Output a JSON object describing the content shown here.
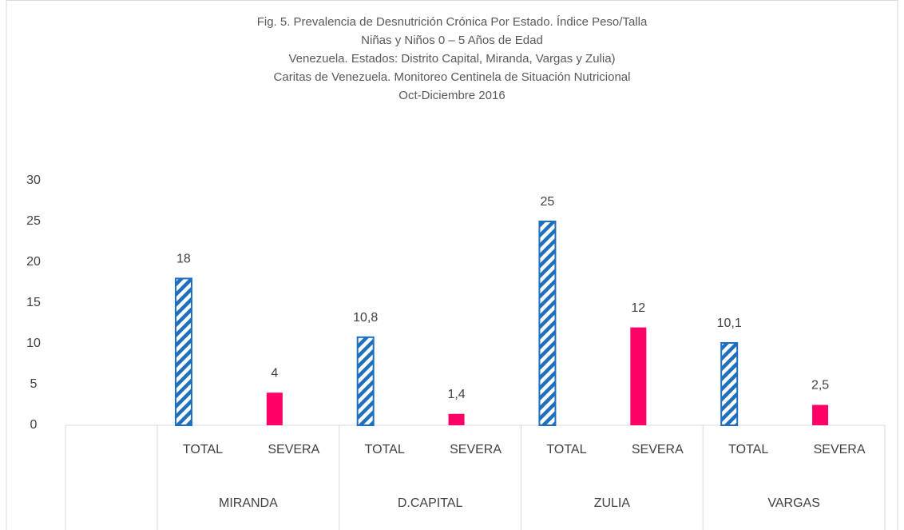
{
  "chart_data": {
    "type": "bar",
    "title": [
      "Fig. 5. Prevalencia de Desnutrición Crónica Por Estado. Índice Peso/Talla",
      "Niñas y Niños 0 – 5 Años de Edad",
      "Venezuela. Estados: Distrito Capital, Miranda, Vargas y Zulia)",
      "Caritas de Venezuela. Monitoreo Centinela de Situación Nutricional",
      "Oct-Diciembre 2016"
    ],
    "categories": [
      "TOTAL",
      "SEVERA",
      "TOTAL",
      "SEVERA",
      "TOTAL",
      "SEVERA",
      "TOTAL",
      "SEVERA"
    ],
    "groups": [
      "MIRANDA",
      "D.CAPITAL",
      "ZULIA",
      "VARGAS"
    ],
    "values": [
      18,
      4,
      10.8,
      1.4,
      25,
      12,
      10.1,
      2.5
    ],
    "value_labels": [
      "18",
      "4",
      "10,8",
      "1,4",
      "25",
      "12",
      "10,1",
      "2,5"
    ],
    "category_styles": [
      {
        "color": "#1f6fbf",
        "hatch": true
      },
      {
        "color": "#ff0066",
        "hatch": false
      }
    ],
    "ylim": [
      0,
      30
    ],
    "yticks": [
      0,
      5,
      10,
      15,
      20,
      25,
      30
    ],
    "grid": false
  }
}
